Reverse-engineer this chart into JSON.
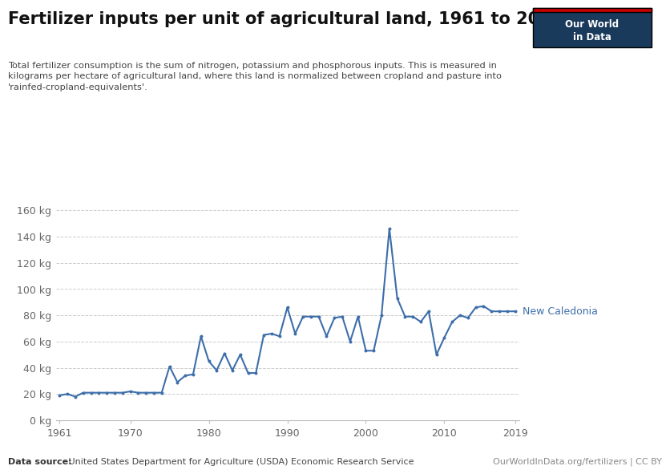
{
  "title": "Fertilizer inputs per unit of agricultural land, 1961 to 2019",
  "subtitle": "Total fertilizer consumption is the sum of nitrogen, potassium and phosphorous inputs. This is measured in\nkilograms per hectare of agricultural land, where this land is normalized between cropland and pasture into\n'rainfed-cropland-equivalents'.",
  "datasource_bold": "Data source:",
  "datasource_rest": " United States Department for Agriculture (USDA) Economic Research Service",
  "copyright": "OurWorldInData.org/fertilizers | CC BY",
  "line_color": "#3d6eaa",
  "label": "New Caledonia",
  "background_color": "#ffffff",
  "ylim": [
    0,
    165
  ],
  "yticks": [
    0,
    20,
    40,
    60,
    80,
    100,
    120,
    140,
    160
  ],
  "ylabel_format": "{} kg",
  "xlim_start": 1961,
  "xlim_end": 2019,
  "xticks": [
    1961,
    1970,
    1980,
    1990,
    2000,
    2010,
    2019
  ],
  "years": [
    1961,
    1962,
    1963,
    1964,
    1965,
    1966,
    1967,
    1968,
    1969,
    1970,
    1971,
    1972,
    1973,
    1974,
    1975,
    1976,
    1977,
    1978,
    1979,
    1980,
    1981,
    1982,
    1983,
    1984,
    1985,
    1986,
    1987,
    1988,
    1989,
    1990,
    1991,
    1992,
    1993,
    1994,
    1995,
    1996,
    1997,
    1998,
    1999,
    2000,
    2001,
    2002,
    2003,
    2004,
    2005,
    2006,
    2007,
    2008,
    2009,
    2010,
    2011,
    2012,
    2013,
    2014,
    2015,
    2016,
    2017,
    2018,
    2019
  ],
  "values": [
    19,
    20,
    18,
    21,
    21,
    21,
    21,
    21,
    21,
    22,
    21,
    21,
    21,
    21,
    41,
    29,
    34,
    35,
    64,
    45,
    38,
    51,
    38,
    50,
    36,
    36,
    65,
    66,
    64,
    86,
    66,
    79,
    79,
    79,
    64,
    78,
    79,
    60,
    79,
    53,
    53,
    80,
    146,
    93,
    79,
    79,
    75,
    83,
    50,
    63,
    75,
    80,
    78,
    86,
    87,
    83,
    83,
    83,
    83
  ],
  "logo_bg": "#1a3a5c",
  "logo_red": "#cc0000",
  "logo_text1": "Our World",
  "logo_text2": "in Data"
}
